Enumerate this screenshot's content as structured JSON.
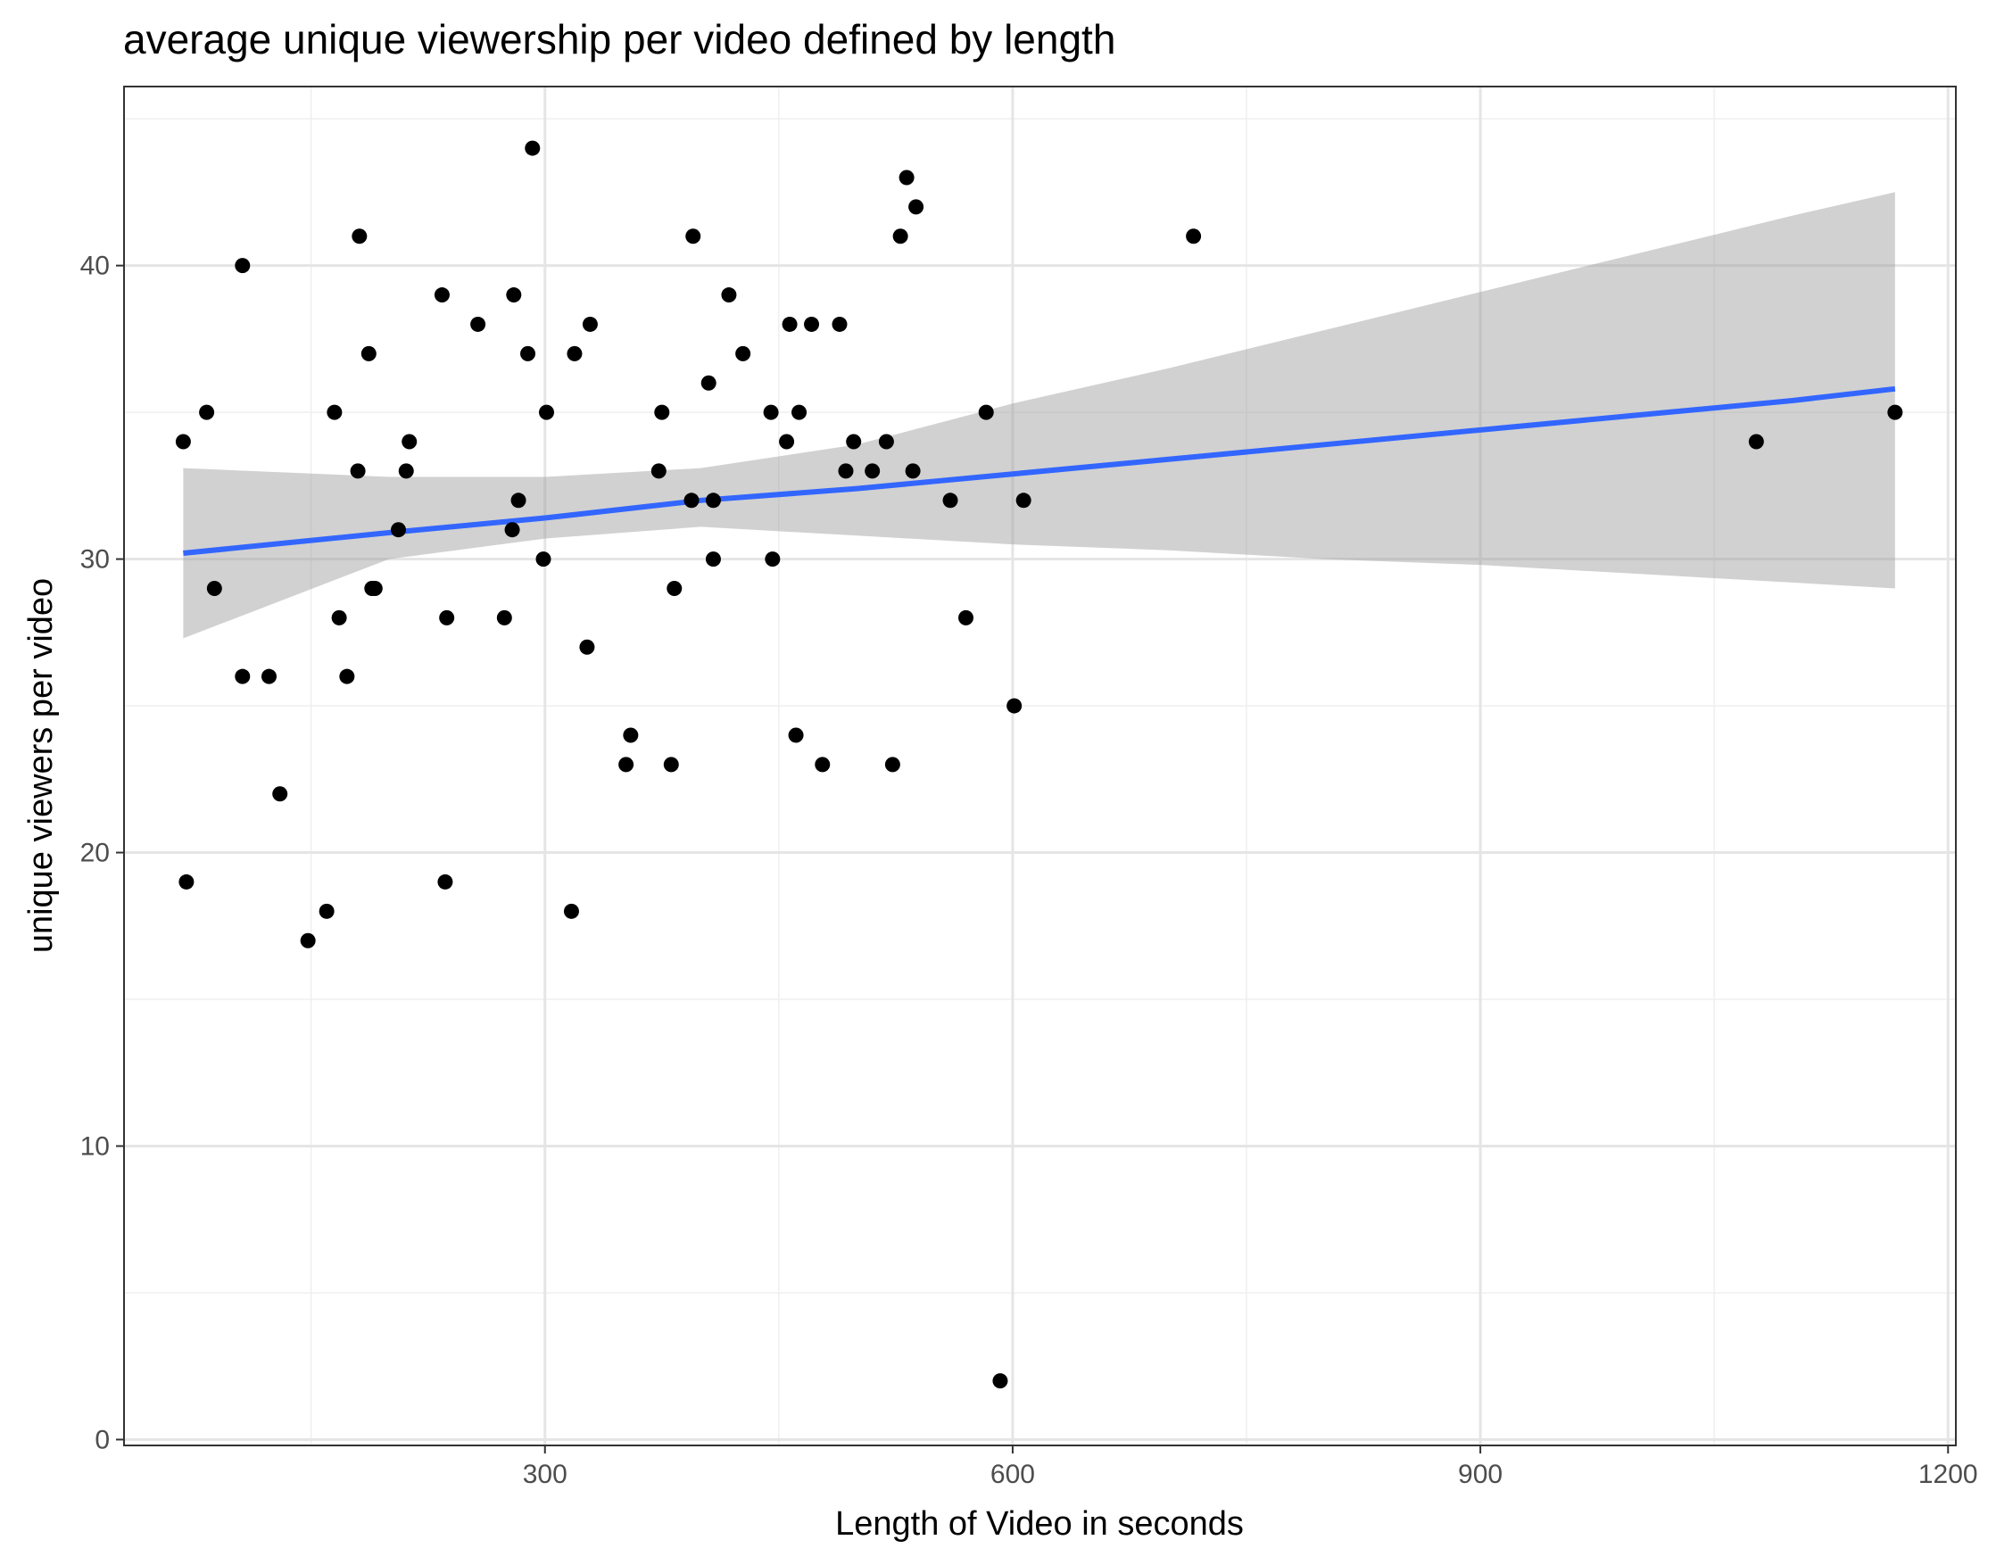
{
  "chart_data": {
    "type": "scatter",
    "title": "average unique viewership per video defined by length",
    "xlabel": "Length of Video in seconds",
    "ylabel": "unique viewers per video",
    "xlim": [
      30,
      1205
    ],
    "ylim": [
      -0.2,
      46.1
    ],
    "x_ticks": [
      300,
      600,
      900,
      1200
    ],
    "y_ticks": [
      0,
      10,
      20,
      30,
      40
    ],
    "grid": true,
    "points": [
      {
        "x": 68,
        "y": 34
      },
      {
        "x": 70,
        "y": 19
      },
      {
        "x": 83,
        "y": 35
      },
      {
        "x": 88,
        "y": 29
      },
      {
        "x": 106,
        "y": 40
      },
      {
        "x": 106,
        "y": 26
      },
      {
        "x": 123,
        "y": 26
      },
      {
        "x": 130,
        "y": 22
      },
      {
        "x": 148,
        "y": 17
      },
      {
        "x": 160,
        "y": 18
      },
      {
        "x": 165,
        "y": 35
      },
      {
        "x": 168,
        "y": 28
      },
      {
        "x": 173,
        "y": 26
      },
      {
        "x": 180,
        "y": 33
      },
      {
        "x": 181,
        "y": 41
      },
      {
        "x": 187,
        "y": 37
      },
      {
        "x": 189,
        "y": 29
      },
      {
        "x": 191,
        "y": 29
      },
      {
        "x": 206,
        "y": 31
      },
      {
        "x": 211,
        "y": 33
      },
      {
        "x": 213,
        "y": 34
      },
      {
        "x": 234,
        "y": 39
      },
      {
        "x": 236,
        "y": 19
      },
      {
        "x": 237,
        "y": 28
      },
      {
        "x": 257,
        "y": 38
      },
      {
        "x": 274,
        "y": 28
      },
      {
        "x": 279,
        "y": 31
      },
      {
        "x": 280,
        "y": 39
      },
      {
        "x": 283,
        "y": 32
      },
      {
        "x": 289,
        "y": 37
      },
      {
        "x": 292,
        "y": 44
      },
      {
        "x": 299,
        "y": 30
      },
      {
        "x": 301,
        "y": 35
      },
      {
        "x": 317,
        "y": 18
      },
      {
        "x": 319,
        "y": 37
      },
      {
        "x": 327,
        "y": 27
      },
      {
        "x": 329,
        "y": 38
      },
      {
        "x": 352,
        "y": 23
      },
      {
        "x": 355,
        "y": 24
      },
      {
        "x": 373,
        "y": 33
      },
      {
        "x": 375,
        "y": 35
      },
      {
        "x": 381,
        "y": 23
      },
      {
        "x": 383,
        "y": 29
      },
      {
        "x": 394,
        "y": 32
      },
      {
        "x": 395,
        "y": 41
      },
      {
        "x": 405,
        "y": 36
      },
      {
        "x": 408,
        "y": 30
      },
      {
        "x": 408,
        "y": 32
      },
      {
        "x": 418,
        "y": 39
      },
      {
        "x": 427,
        "y": 37
      },
      {
        "x": 445,
        "y": 35
      },
      {
        "x": 446,
        "y": 30
      },
      {
        "x": 455,
        "y": 34
      },
      {
        "x": 457,
        "y": 38
      },
      {
        "x": 461,
        "y": 24
      },
      {
        "x": 463,
        "y": 35
      },
      {
        "x": 471,
        "y": 38
      },
      {
        "x": 478,
        "y": 23
      },
      {
        "x": 489,
        "y": 38
      },
      {
        "x": 493,
        "y": 33
      },
      {
        "x": 498,
        "y": 34
      },
      {
        "x": 510,
        "y": 33
      },
      {
        "x": 519,
        "y": 34
      },
      {
        "x": 523,
        "y": 23
      },
      {
        "x": 528,
        "y": 41
      },
      {
        "x": 532,
        "y": 43
      },
      {
        "x": 536,
        "y": 33
      },
      {
        "x": 538,
        "y": 42
      },
      {
        "x": 560,
        "y": 32
      },
      {
        "x": 570,
        "y": 28
      },
      {
        "x": 583,
        "y": 35
      },
      {
        "x": 592,
        "y": 2
      },
      {
        "x": 601,
        "y": 25
      },
      {
        "x": 607,
        "y": 32
      },
      {
        "x": 716,
        "y": 41
      },
      {
        "x": 1077,
        "y": 34
      },
      {
        "x": 1166,
        "y": 35
      }
    ],
    "fit": {
      "type": "line",
      "method": "linear regression with confidence band",
      "color": "#3366FF",
      "band_color": "#999999",
      "x": [
        68,
        200,
        300,
        400,
        500,
        600,
        700,
        800,
        900,
        1000,
        1100,
        1166
      ],
      "y": [
        30.2,
        30.9,
        31.4,
        32.0,
        32.4,
        32.9,
        33.4,
        33.9,
        34.4,
        34.9,
        35.4,
        35.8
      ],
      "lower": [
        27.3,
        30.0,
        30.7,
        31.1,
        30.8,
        30.5,
        30.3,
        30.0,
        29.8,
        29.5,
        29.2,
        29.0
      ],
      "upper": [
        33.1,
        32.8,
        32.8,
        33.1,
        33.9,
        35.3,
        36.5,
        37.8,
        39.1,
        40.4,
        41.7,
        42.5
      ]
    }
  },
  "colors": {
    "point": "#000000",
    "panel_border": "#333333",
    "grid_major": "#e5e5e5",
    "grid_minor": "#efefef"
  }
}
